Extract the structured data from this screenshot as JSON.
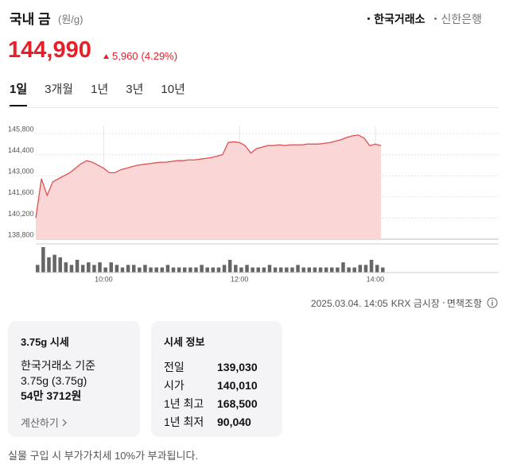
{
  "header": {
    "title": "국내 금",
    "unit": "(원/g)",
    "sources": [
      "한국거래소",
      "신한은행"
    ]
  },
  "price": {
    "value": "144,990",
    "change": "5,960",
    "change_pct": "(4.29%)"
  },
  "tabs": [
    "1일",
    "3개월",
    "1년",
    "3년",
    "10년"
  ],
  "chart_data": {
    "type": "area",
    "color": "#e0504f",
    "fill_color": "#fbd6d6",
    "volume_color": "#666666",
    "x": [
      "09:00",
      "09:05",
      "09:10",
      "09:15",
      "09:20",
      "09:25",
      "09:30",
      "09:35",
      "09:40",
      "09:45",
      "09:50",
      "09:55",
      "10:00",
      "10:05",
      "10:10",
      "10:15",
      "10:20",
      "10:25",
      "10:30",
      "10:35",
      "10:40",
      "10:45",
      "10:50",
      "10:55",
      "11:00",
      "11:05",
      "11:10",
      "11:15",
      "11:20",
      "11:25",
      "11:30",
      "11:35",
      "11:40",
      "11:45",
      "11:50",
      "11:55",
      "12:00",
      "12:05",
      "12:10",
      "12:15",
      "12:20",
      "12:25",
      "12:30",
      "12:35",
      "12:40",
      "12:45",
      "12:50",
      "12:55",
      "13:00",
      "13:05",
      "13:10",
      "13:15",
      "13:20",
      "13:25",
      "13:30",
      "13:35",
      "13:40",
      "13:45",
      "13:50",
      "13:55",
      "14:00",
      "14:05"
    ],
    "values": [
      140200,
      142800,
      141700,
      142600,
      142800,
      143000,
      143200,
      143500,
      143800,
      144000,
      143900,
      143700,
      143500,
      143200,
      143200,
      143400,
      143500,
      143600,
      143700,
      143750,
      143800,
      143850,
      143900,
      143900,
      143950,
      144000,
      144000,
      144050,
      144050,
      144100,
      144150,
      144200,
      144300,
      144400,
      145200,
      145250,
      145200,
      145000,
      144500,
      144800,
      144900,
      145000,
      145000,
      145050,
      145000,
      145050,
      145050,
      145050,
      145100,
      145100,
      145100,
      145150,
      145200,
      145300,
      145400,
      145550,
      145650,
      145700,
      145500,
      145000,
      145100,
      144990
    ],
    "volumes": [
      3,
      10,
      6,
      7,
      6,
      4,
      3,
      5,
      3,
      4,
      3,
      4,
      2,
      4,
      3,
      2,
      3,
      3,
      2,
      3,
      2,
      2,
      2,
      3,
      2,
      2,
      2,
      2,
      2,
      3,
      2,
      2,
      2,
      3,
      5,
      3,
      2,
      3,
      2,
      2,
      2,
      3,
      2,
      2,
      2,
      2,
      3,
      2,
      2,
      2,
      2,
      2,
      2,
      2,
      4,
      2,
      2,
      3,
      3,
      5,
      3,
      2
    ],
    "xlim": [
      "09:00",
      "15:30"
    ],
    "xticks": [
      "10:00",
      "12:00",
      "14:00"
    ],
    "ylim": [
      138800,
      146300
    ],
    "yticks": [
      {
        "value": 145800,
        "label": "145,800"
      },
      {
        "value": 144400,
        "label": "144,400"
      },
      {
        "value": 143000,
        "label": "143,000"
      },
      {
        "value": 141600,
        "label": "141,600"
      },
      {
        "value": 140200,
        "label": "140,200"
      },
      {
        "value": 138800,
        "label": "138,800"
      }
    ],
    "grid": true
  },
  "footer": {
    "timestamp": "2025.03.04. 14:05",
    "market": "KRX 금시장",
    "disclaimer": "면책조항"
  },
  "card_gram": {
    "title": "3.75g 시세",
    "basis": "한국거래소 기준",
    "weight": "3.75g (3.75g)",
    "amount": "54만 3712원",
    "link": "계산하기"
  },
  "card_info": {
    "title": "시세 정보",
    "rows": [
      [
        "전일",
        "139,030"
      ],
      [
        "시가",
        "140,010"
      ],
      [
        "1년 최고",
        "168,500"
      ],
      [
        "1년 최저",
        "90,040"
      ]
    ]
  },
  "note": "실물 구입 시 부가가치세 10%가 부과됩니다."
}
